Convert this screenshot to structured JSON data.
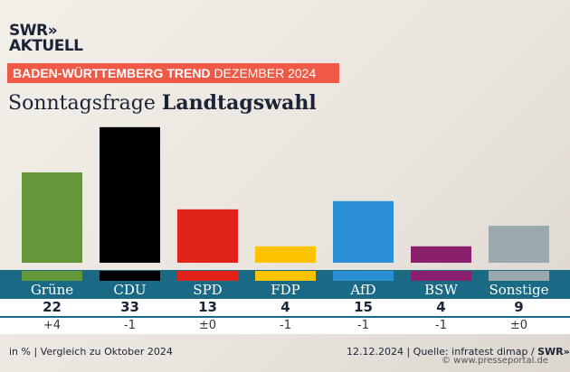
{
  "logo": {
    "line1": "SWR»",
    "line2": "AKTUELL"
  },
  "banner": {
    "bold": "BADEN-WÜRTTEMBERG TREND",
    "light": "DEZEMBER 2024"
  },
  "subtitle": {
    "regular": "Sonntagsfrage",
    "bold": "Landtagswahl"
  },
  "chart_data": {
    "type": "bar",
    "title": "Sonntagsfrage Landtagswahl",
    "categories": [
      "Grüne",
      "CDU",
      "SPD",
      "FDP",
      "AfD",
      "BSW",
      "Sonstige"
    ],
    "values": [
      22,
      33,
      13,
      4,
      15,
      4,
      9
    ],
    "changes": [
      "+4",
      "-1",
      "±0",
      "-1",
      "-1",
      "-1",
      "±0"
    ],
    "colors": [
      "#64963a",
      "#000000",
      "#e2231a",
      "#fdc300",
      "#2b8fd6",
      "#8a1f6e",
      "#9aa9ad"
    ],
    "unit": "in %"
  },
  "footer": {
    "left": "in % | Vergleich zu Oktober 2024",
    "right": "12.12.2024 | Quelle: infratest dimap /",
    "logo": "SWR»",
    "watermark": "© www.presseportal.de"
  }
}
